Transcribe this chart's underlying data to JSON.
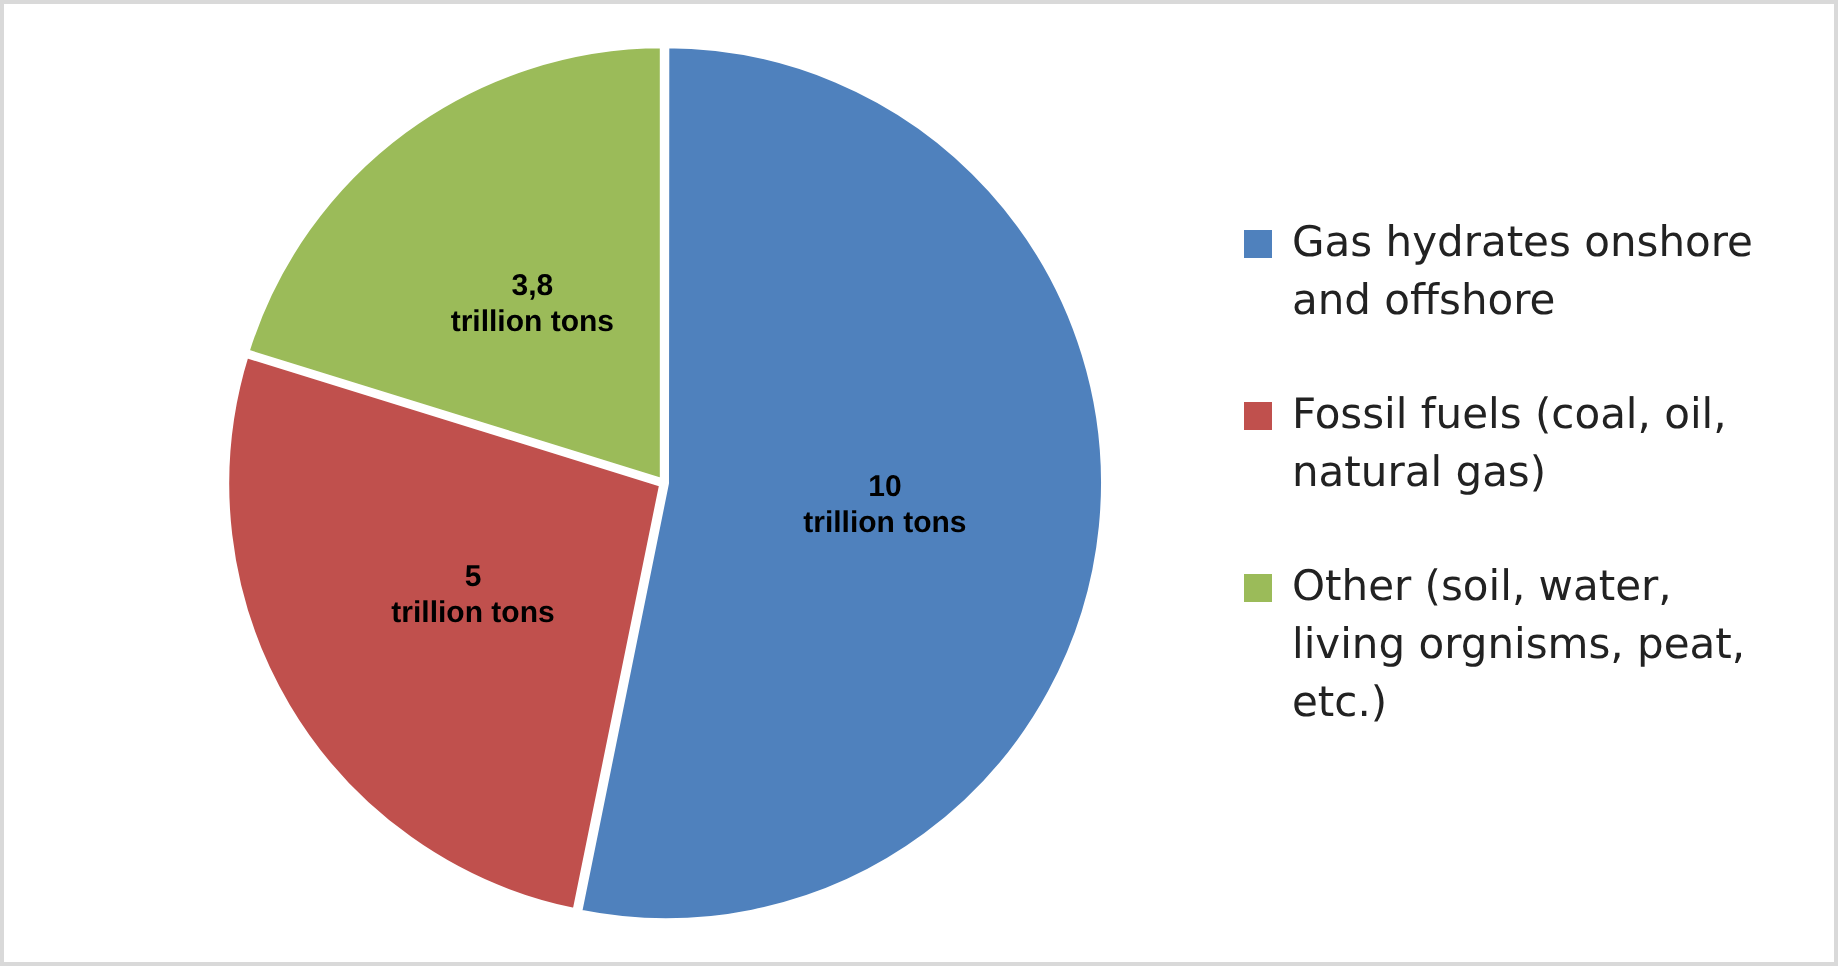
{
  "chart_data": {
    "type": "pie",
    "categories": [
      "Gas hydrates onshore and offshore",
      "Fossil fuels (coal, oil, natural gas)",
      "Other (soil, water, living orgnisms, peat, etc.)"
    ],
    "values": [
      10,
      5,
      3.8
    ],
    "colors": [
      "#4f81bd",
      "#c0504d",
      "#9bbb59"
    ],
    "value_labels": [
      "10 trillion tons",
      "5 trillion tons",
      "3,8 trillion tons"
    ],
    "legend": "right"
  }
}
